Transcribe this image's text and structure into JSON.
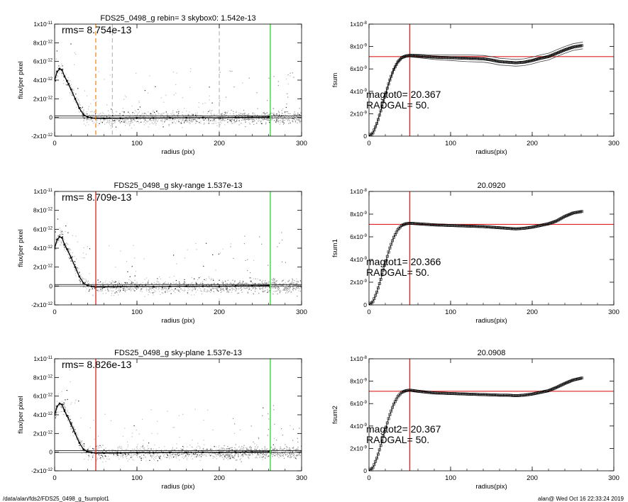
{
  "footer": {
    "path": "/data/alan/fds2/FDS25_0498_g_fsumplot1",
    "stamp": "alan@  Wed Oct 16 22:33:24 2019"
  },
  "chart_data": [
    {
      "type": "scatter",
      "panel": "profile-1",
      "title": "FDS25_0498_g rebin= 3    skybox0:  1.542e-13",
      "xlabel": "radius (pix)",
      "ylabel": "flux/per pixel",
      "xlim": [
        0,
        300
      ],
      "ylim": [
        -2e-12,
        1e-11
      ],
      "xticks": [
        "0",
        "100",
        "200",
        "300"
      ],
      "yticks": [
        "-2x10^-12",
        "0",
        "2x10^-12",
        "4x10^-12",
        "6x10^-12",
        "8x10^-12",
        "1x10^-11"
      ],
      "annotation": "rms= 8.754e-13",
      "profile": {
        "x": [
          0,
          3,
          6,
          9,
          12,
          15,
          20,
          25,
          30,
          35,
          40,
          45,
          50,
          60,
          80,
          100,
          120,
          140,
          160,
          180,
          200,
          220,
          240,
          260
        ],
        "y": [
          4e-12,
          4.9e-12,
          5.2e-12,
          5.1e-12,
          4.4e-12,
          3.9e-12,
          3e-12,
          2e-12,
          1e-12,
          3e-13,
          5e-14,
          -5e-14,
          -1e-13,
          -1e-13,
          -8e-14,
          -5e-14,
          -6e-14,
          -4e-14,
          -3e-14,
          -2e-14,
          -5e-14,
          0,
          2e-14,
          4e-14
        ]
      },
      "vlines": [
        {
          "x": 50,
          "color": "#f08a24",
          "style": "dashed"
        },
        {
          "x": 70,
          "color": "#888888",
          "style": "dashed"
        },
        {
          "x": 200,
          "color": "#888888",
          "style": "dashed"
        },
        {
          "x": 262,
          "color": "#2ad62a",
          "style": "solid"
        }
      ],
      "hlines": [
        {
          "y": 1.542e-13,
          "color": "#000000"
        }
      ]
    },
    {
      "type": "line",
      "panel": "fsum-0",
      "title": "",
      "xlabel": "radius(pix)",
      "ylabel": "fsum",
      "xlim": [
        0,
        300
      ],
      "ylim": [
        0,
        1e-08
      ],
      "xticks": [
        "0",
        "100",
        "200",
        "300"
      ],
      "yticks": [
        "0",
        "2x10^-9",
        "4x10^-9",
        "6x10^-9",
        "8x10^-9",
        "1x10^-8"
      ],
      "annotations": [
        "magtot0=  20.367",
        "RADGAL=     50."
      ],
      "curve": {
        "x": [
          0,
          5,
          10,
          15,
          20,
          25,
          30,
          35,
          40,
          45,
          50,
          60,
          80,
          100,
          120,
          140,
          150,
          160,
          170,
          180,
          190,
          200,
          210,
          220,
          230,
          240,
          250,
          262
        ],
        "y": [
          0,
          3e-10,
          1.2e-09,
          2.4e-09,
          3.7e-09,
          4.9e-09,
          5.9e-09,
          6.6e-09,
          7e-09,
          7.15e-09,
          7.2e-09,
          7.15e-09,
          7.05e-09,
          7e-09,
          6.95e-09,
          6.9e-09,
          6.8e-09,
          6.65e-09,
          6.6e-09,
          6.55e-09,
          6.6e-09,
          6.75e-09,
          6.95e-09,
          7.1e-09,
          7.4e-09,
          7.7e-09,
          7.95e-09,
          8.1e-09
        ]
      },
      "envelope_offset": 3e-10,
      "vline": {
        "x": 50,
        "color": "#e02020"
      },
      "hline": {
        "y": 7.1e-09,
        "color": "#e02020"
      }
    },
    {
      "type": "scatter",
      "panel": "profile-2",
      "title": "FDS25_0498_g sky-range  1.537e-13",
      "xlabel": "radius (pix)",
      "ylabel": "flux/per pixel",
      "xlim": [
        0,
        300
      ],
      "ylim": [
        -2e-12,
        1e-11
      ],
      "xticks": [
        "0",
        "100",
        "200",
        "300"
      ],
      "yticks": [
        "-2x10^-12",
        "0",
        "2x10^-12",
        "4x10^-12",
        "6x10^-12",
        "8x10^-12",
        "1x10^-11"
      ],
      "annotation": "rms= 8.709e-13",
      "profile": {
        "x": [
          0,
          3,
          6,
          9,
          12,
          15,
          20,
          25,
          30,
          35,
          40,
          45,
          50,
          60,
          80,
          100,
          120,
          140,
          160,
          180,
          200,
          220,
          240,
          260
        ],
        "y": [
          4e-12,
          4.9e-12,
          5.2e-12,
          5.1e-12,
          4.4e-12,
          3.9e-12,
          3e-12,
          2e-12,
          1e-12,
          3e-13,
          5e-14,
          -5e-14,
          -1e-13,
          -1e-13,
          -8e-14,
          -5e-14,
          -6e-14,
          -4e-14,
          -3e-14,
          -2e-14,
          -5e-14,
          0,
          2e-14,
          4e-14
        ]
      },
      "vlines": [
        {
          "x": 50,
          "color": "#e02020",
          "style": "solid"
        },
        {
          "x": 262,
          "color": "#2ad62a",
          "style": "solid"
        }
      ],
      "hlines": [
        {
          "y": 1.537e-13,
          "color": "#000000"
        }
      ]
    },
    {
      "type": "line",
      "panel": "fsum-1",
      "title": "20.0920",
      "xlabel": "radius(pix)",
      "ylabel": "fsum1",
      "xlim": [
        0,
        300
      ],
      "ylim": [
        0,
        1e-08
      ],
      "xticks": [
        "0",
        "100",
        "200",
        "300"
      ],
      "yticks": [
        "0",
        "2x10^-9",
        "4x10^-9",
        "6x10^-9",
        "8x10^-9",
        "1x10^-8"
      ],
      "annotations": [
        "magtot1=  20.366",
        "RADGAL=     50."
      ],
      "curve": {
        "x": [
          0,
          5,
          10,
          15,
          20,
          25,
          30,
          35,
          40,
          45,
          50,
          60,
          80,
          100,
          120,
          140,
          150,
          160,
          170,
          180,
          190,
          200,
          210,
          220,
          230,
          240,
          250,
          262
        ],
        "y": [
          0,
          3e-10,
          1.2e-09,
          2.4e-09,
          3.7e-09,
          4.9e-09,
          5.9e-09,
          6.6e-09,
          7e-09,
          7.15e-09,
          7.2e-09,
          7.15e-09,
          7.05e-09,
          7e-09,
          6.95e-09,
          6.9e-09,
          6.85e-09,
          6.8e-09,
          6.75e-09,
          6.7e-09,
          6.75e-09,
          6.85e-09,
          7e-09,
          7.15e-09,
          7.4e-09,
          7.8e-09,
          8.1e-09,
          8.25e-09
        ]
      },
      "envelope_offset": 0,
      "vline": {
        "x": 50,
        "color": "#e02020"
      },
      "hline": {
        "y": 7.1e-09,
        "color": "#e02020"
      }
    },
    {
      "type": "scatter",
      "panel": "profile-3",
      "title": "FDS25_0498_g sky-plane  1.537e-13",
      "xlabel": "radius (pix)",
      "ylabel": "flux/per pixel",
      "xlim": [
        0,
        300
      ],
      "ylim": [
        -2e-12,
        1e-11
      ],
      "xticks": [
        "0",
        "100",
        "200",
        "300"
      ],
      "yticks": [
        "-2x10^-12",
        "0",
        "2x10^-12",
        "4x10^-12",
        "6x10^-12",
        "8x10^-12",
        "1x10^-11"
      ],
      "annotation": "rms= 8.826e-13",
      "profile": {
        "x": [
          0,
          3,
          6,
          9,
          12,
          15,
          20,
          25,
          30,
          35,
          40,
          45,
          50,
          60,
          80,
          100,
          120,
          140,
          160,
          180,
          200,
          220,
          240,
          260
        ],
        "y": [
          4e-12,
          4.9e-12,
          5.2e-12,
          5.1e-12,
          4.4e-12,
          3.9e-12,
          3e-12,
          2e-12,
          1e-12,
          3e-13,
          5e-14,
          -5e-14,
          -1e-13,
          -1e-13,
          -8e-14,
          -5e-14,
          -6e-14,
          -4e-14,
          -3e-14,
          -2e-14,
          -5e-14,
          0,
          2e-14,
          4e-14
        ]
      },
      "vlines": [
        {
          "x": 50,
          "color": "#e02020",
          "style": "solid"
        },
        {
          "x": 262,
          "color": "#2ad62a",
          "style": "solid"
        }
      ],
      "hlines": [
        {
          "y": 1.537e-13,
          "color": "#000000"
        }
      ]
    },
    {
      "type": "line",
      "panel": "fsum-2",
      "title": "20.0908",
      "xlabel": "radius(pix)",
      "ylabel": "fsum2",
      "xlim": [
        0,
        300
      ],
      "ylim": [
        0,
        1e-08
      ],
      "xticks": [
        "0",
        "100",
        "200",
        "300"
      ],
      "yticks": [
        "0",
        "2x10^-9",
        "4x10^-9",
        "6x10^-9",
        "8x10^-9",
        "1x10^-8"
      ],
      "annotations": [
        "magtot2=  20.367",
        "RADGAL=     50."
      ],
      "curve": {
        "x": [
          0,
          5,
          10,
          15,
          20,
          25,
          30,
          35,
          40,
          45,
          50,
          60,
          80,
          100,
          120,
          140,
          150,
          160,
          170,
          180,
          190,
          200,
          210,
          220,
          230,
          240,
          250,
          262
        ],
        "y": [
          0,
          3e-10,
          1.2e-09,
          2.4e-09,
          3.7e-09,
          4.9e-09,
          5.9e-09,
          6.6e-09,
          7e-09,
          7.15e-09,
          7.2e-09,
          7.1e-09,
          6.95e-09,
          6.9e-09,
          6.85e-09,
          6.8e-09,
          6.78e-09,
          6.75e-09,
          6.75e-09,
          6.7e-09,
          6.75e-09,
          6.85e-09,
          7e-09,
          7.15e-09,
          7.45e-09,
          7.8e-09,
          8.1e-09,
          8.3e-09
        ]
      },
      "envelope_offset": 0,
      "vline": {
        "x": 50,
        "color": "#e02020"
      },
      "hline": {
        "y": 7.1e-09,
        "color": "#e02020"
      }
    }
  ]
}
